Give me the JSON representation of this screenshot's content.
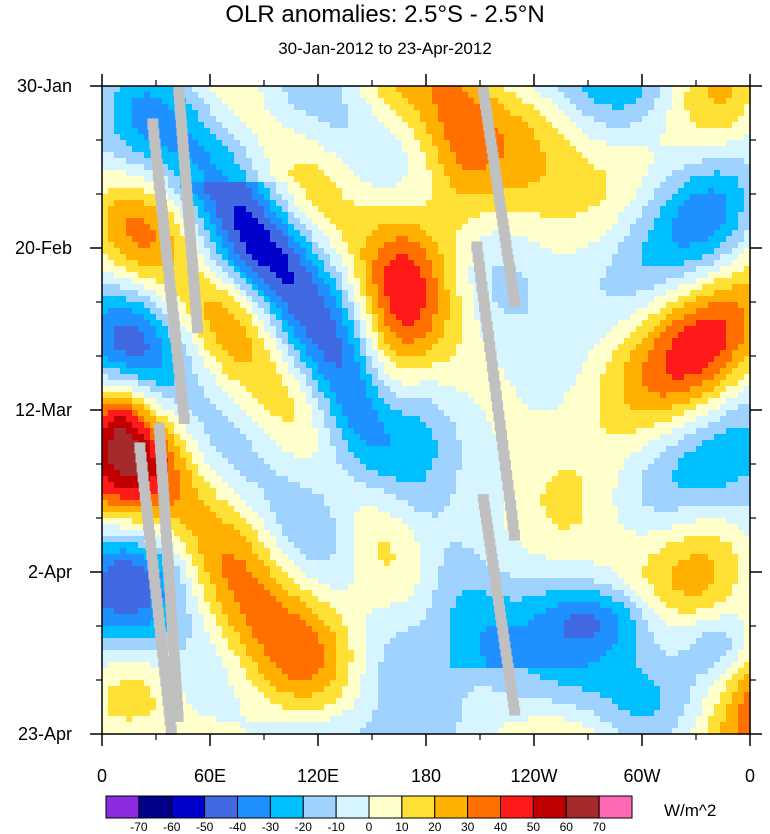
{
  "chart_data": {
    "type": "heatmap",
    "title": "OLR anomalies: 2.5°S - 2.5°N",
    "subtitle": "30-Jan-2012 to 23-Apr-2012",
    "x_tick_labels": [
      "0",
      "60E",
      "120E",
      "180",
      "120W",
      "60W",
      "0"
    ],
    "x_ticks_deg": [
      0,
      60,
      120,
      180,
      240,
      300,
      360
    ],
    "x_range_deg": [
      0,
      360
    ],
    "y_tick_labels": [
      "30-Jan",
      "20-Feb",
      "12-Mar",
      "2-Apr",
      "23-Apr"
    ],
    "y_range": [
      "30-Jan-2012",
      "23-Apr-2012"
    ],
    "colorbar": {
      "unit": "W/m^2",
      "labels": [
        "-70",
        "-60",
        "-50",
        "-40",
        "-30",
        "-20",
        "-10",
        "0",
        "10",
        "20",
        "30",
        "40",
        "50",
        "60",
        "70"
      ],
      "colors": [
        "#8a2be2",
        "#00008b",
        "#0000cd",
        "#4169e1",
        "#1e90ff",
        "#00bfff",
        "#a0d2ff",
        "#d6f5ff",
        "#ffffcc",
        "#ffe135",
        "#ffb000",
        "#ff7000",
        "#ff1a1a",
        "#c00000",
        "#a52a2a",
        "#ff69b4"
      ]
    },
    "missing_color": "#c0c0c0",
    "grid": false
  }
}
